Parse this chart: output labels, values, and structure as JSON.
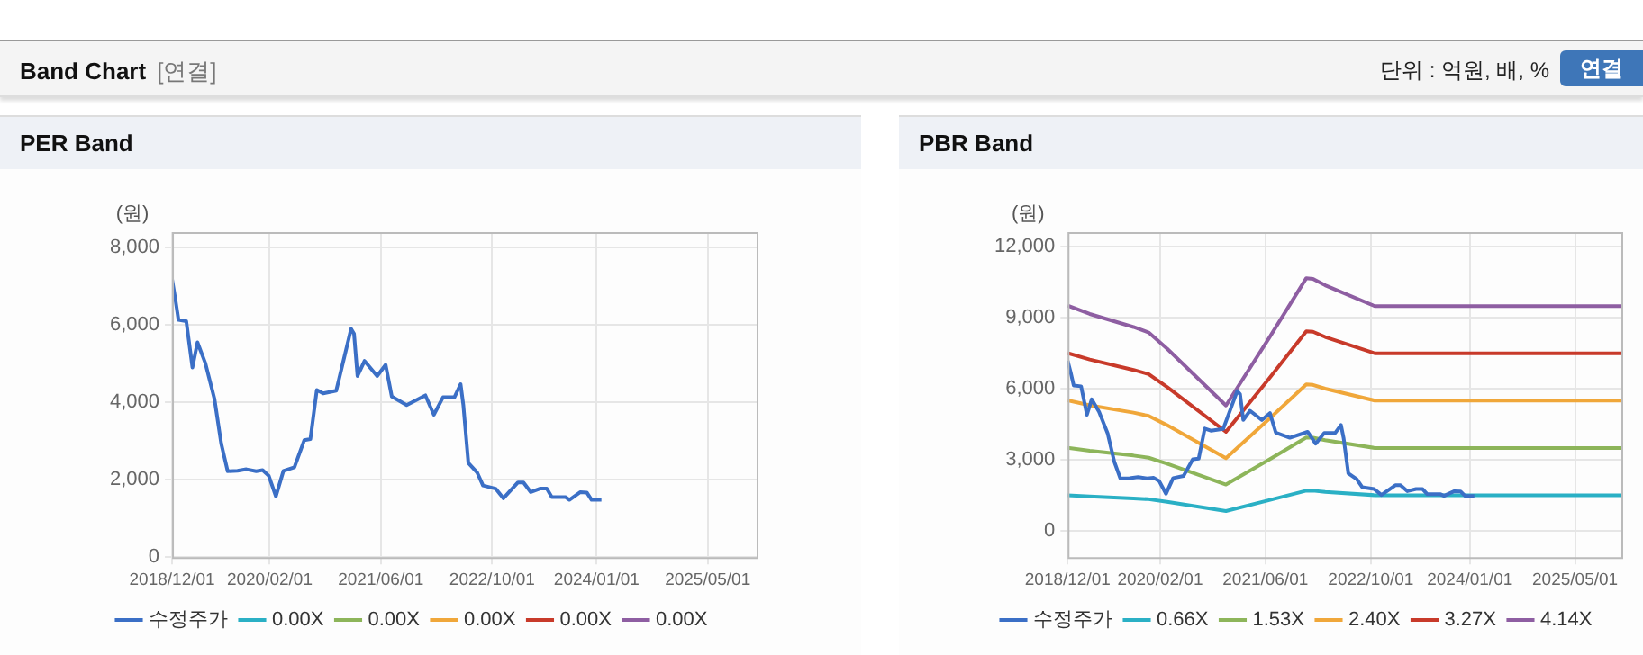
{
  "chart_data": [
    {
      "type": "other",
      "title": "Band Chart",
      "subtitle": "[연결]",
      "annotations": [
        "단위 : 억원, 배, %",
        "연결"
      ]
    },
    {
      "type": "line",
      "title": "PER Band",
      "ylabel": "(원)",
      "xlim": [
        "2018-12-01",
        "2025-12-01"
      ],
      "xticks": [
        {
          "value": "2018-12-01",
          "label": "2018/12/01"
        },
        {
          "value": "2020-02-01",
          "label": "2020/02/01"
        },
        {
          "value": "2021-06-01",
          "label": "2021/06/01"
        },
        {
          "value": "2022-10-01",
          "label": "2022/10/01"
        },
        {
          "value": "2024-01-01",
          "label": "2024/01/01"
        },
        {
          "value": "2025-05-01",
          "label": "2025/05/01"
        }
      ],
      "ylim": [
        0,
        8400
      ],
      "yticks": [
        0,
        {
          "value": 2000,
          "label": "2,000"
        },
        {
          "value": 4000,
          "label": "4,000"
        },
        {
          "value": 6000,
          "label": "6,000"
        },
        {
          "value": 8000,
          "label": "8,000"
        }
      ],
      "grid": true,
      "legend": "bottom",
      "series": [
        {
          "name": "수정주가",
          "color": "#3b6fc6",
          "x": [
            "2018-12-01",
            "2018-12-15",
            "2018-12-29",
            "2019-02-01",
            "2019-02-28",
            "2019-03-22",
            "2019-04-25",
            "2019-06-04",
            "2019-07-04",
            "2019-08-01",
            "2019-09-13",
            "2019-10-22",
            "2019-12-04",
            "2020-01-01",
            "2020-01-28",
            "2020-02-28",
            "2020-04-01",
            "2020-05-19",
            "2020-07-01",
            "2020-07-28",
            "2020-08-25",
            "2020-09-22",
            "2020-11-18",
            "2021-01-22",
            "2021-02-04",
            "2021-02-19",
            "2021-03-22",
            "2021-05-16",
            "2021-06-22",
            "2021-07-19",
            "2021-09-22",
            "2021-12-13",
            "2022-01-19",
            "2022-02-28",
            "2022-04-19",
            "2022-05-16",
            "2022-05-28",
            "2022-06-19",
            "2022-07-28",
            "2022-08-22",
            "2022-10-16",
            "2022-11-19",
            "2023-01-22",
            "2023-02-15",
            "2023-03-19",
            "2023-04-28",
            "2023-05-28",
            "2023-06-19",
            "2023-08-19",
            "2023-09-04",
            "2023-10-22",
            "2023-11-19",
            "2023-12-10",
            "2024-01-22"
          ],
          "values": [
            7180,
            6680,
            6130,
            6100,
            4900,
            5550,
            5020,
            4100,
            2930,
            2220,
            2230,
            2270,
            2220,
            2250,
            2100,
            1570,
            2230,
            2320,
            3020,
            3050,
            4320,
            4230,
            4300,
            5900,
            5770,
            4680,
            5070,
            4680,
            4970,
            4150,
            3930,
            4180,
            3680,
            4130,
            4130,
            4470,
            3930,
            2430,
            2180,
            1850,
            1770,
            1520,
            1930,
            1930,
            1680,
            1770,
            1770,
            1550,
            1550,
            1480,
            1680,
            1670,
            1480,
            1480
          ]
        },
        {
          "name": "0.00X",
          "color": "#2ab0c5"
        },
        {
          "name": "0.00X",
          "color": "#8db55a"
        },
        {
          "name": "0.00X",
          "color": "#f0a73a"
        },
        {
          "name": "0.00X",
          "color": "#c83a2a"
        },
        {
          "name": "0.00X",
          "color": "#8e5ea2"
        }
      ]
    },
    {
      "type": "line",
      "title": "PBR Band",
      "ylabel": "(원)",
      "xlim": [
        "2018-12-01",
        "2025-12-01"
      ],
      "xticks": [
        {
          "value": "2018-12-01",
          "label": "2018/12/01"
        },
        {
          "value": "2020-02-01",
          "label": "2020/02/01"
        },
        {
          "value": "2021-06-01",
          "label": "2021/06/01"
        },
        {
          "value": "2022-10-01",
          "label": "2022/10/01"
        },
        {
          "value": "2024-01-01",
          "label": "2024/01/01"
        },
        {
          "value": "2025-05-01",
          "label": "2025/05/01"
        }
      ],
      "ylim": [
        -1100,
        12600
      ],
      "yticks": [
        0,
        {
          "value": 3000,
          "label": "3,000"
        },
        {
          "value": 6000,
          "label": "6,000"
        },
        {
          "value": 9000,
          "label": "9,000"
        },
        {
          "value": 12000,
          "label": "12,000"
        }
      ],
      "grid": true,
      "legend": "bottom",
      "series": [
        {
          "name": "수정주가",
          "color": "#3b6fc6",
          "x": [
            "2018-12-01",
            "2018-12-15",
            "2018-12-29",
            "2019-02-01",
            "2019-02-28",
            "2019-03-22",
            "2019-04-25",
            "2019-06-04",
            "2019-07-04",
            "2019-08-01",
            "2019-09-13",
            "2019-10-22",
            "2019-12-04",
            "2020-01-01",
            "2020-01-28",
            "2020-02-28",
            "2020-04-01",
            "2020-05-19",
            "2020-07-01",
            "2020-07-28",
            "2020-08-25",
            "2020-09-22",
            "2020-11-18",
            "2021-01-22",
            "2021-02-04",
            "2021-02-19",
            "2021-03-22",
            "2021-05-16",
            "2021-06-22",
            "2021-07-19",
            "2021-09-22",
            "2021-12-13",
            "2022-01-19",
            "2022-02-28",
            "2022-04-19",
            "2022-05-16",
            "2022-05-28",
            "2022-06-19",
            "2022-07-28",
            "2022-08-22",
            "2022-10-16",
            "2022-11-19",
            "2023-01-22",
            "2023-02-15",
            "2023-03-19",
            "2023-04-28",
            "2023-05-28",
            "2023-06-19",
            "2023-08-19",
            "2023-09-04",
            "2023-10-22",
            "2023-11-19",
            "2023-12-10",
            "2024-01-22"
          ],
          "values": [
            7180,
            6680,
            6130,
            6100,
            4900,
            5550,
            5020,
            4100,
            2930,
            2220,
            2230,
            2270,
            2220,
            2250,
            2100,
            1570,
            2230,
            2320,
            3020,
            3050,
            4320,
            4230,
            4300,
            5900,
            5770,
            4680,
            5070,
            4680,
            4970,
            4150,
            3930,
            4180,
            3680,
            4130,
            4130,
            4470,
            3930,
            2430,
            2180,
            1850,
            1770,
            1520,
            1930,
            1930,
            1680,
            1770,
            1770,
            1550,
            1550,
            1480,
            1680,
            1670,
            1480,
            1480
          ]
        },
        {
          "name": "0.66X",
          "color": "#2ab0c5",
          "x": [
            "2018-12-01",
            "2019-03-13",
            "2019-10-01",
            "2019-12-10",
            "2020-03-04",
            "2020-12-01",
            "2021-06-19",
            "2021-12-07",
            "2022-01-07",
            "2022-03-04",
            "2022-10-19",
            "2025-12-01"
          ],
          "values": [
            1510,
            1460,
            1370,
            1340,
            1230,
            840,
            1300,
            1700,
            1700,
            1650,
            1510,
            1510
          ]
        },
        {
          "name": "1.53X",
          "color": "#8db55a",
          "x": [
            "2018-12-01",
            "2019-03-13",
            "2019-10-01",
            "2019-12-10",
            "2020-03-04",
            "2020-12-01",
            "2021-06-19",
            "2021-12-07",
            "2022-01-07",
            "2022-03-04",
            "2022-10-19",
            "2025-12-01"
          ],
          "values": [
            3510,
            3380,
            3180,
            3090,
            2840,
            1960,
            3010,
            3940,
            3930,
            3830,
            3500,
            3500
          ]
        },
        {
          "name": "2.40X",
          "color": "#f0a73a",
          "x": [
            "2018-12-01",
            "2019-03-13",
            "2019-10-01",
            "2019-12-10",
            "2020-03-04",
            "2020-12-01",
            "2021-06-19",
            "2021-12-07",
            "2022-01-07",
            "2022-03-04",
            "2022-10-19",
            "2025-12-01"
          ],
          "values": [
            5510,
            5300,
            4990,
            4850,
            4460,
            3070,
            4730,
            6180,
            6160,
            6000,
            5500,
            5500
          ]
        },
        {
          "name": "3.27X",
          "color": "#c83a2a",
          "x": [
            "2018-12-01",
            "2019-03-13",
            "2019-10-01",
            "2019-12-10",
            "2020-03-04",
            "2020-12-01",
            "2021-06-19",
            "2021-12-07",
            "2022-01-07",
            "2022-03-04",
            "2022-10-19",
            "2025-12-01"
          ],
          "values": [
            7500,
            7230,
            6790,
            6610,
            6070,
            4180,
            6440,
            8420,
            8400,
            8180,
            7490,
            7490
          ]
        },
        {
          "name": "4.14X",
          "color": "#8e5ea2",
          "x": [
            "2018-12-01",
            "2019-03-13",
            "2019-10-01",
            "2019-12-10",
            "2020-03-04",
            "2020-12-01",
            "2021-06-19",
            "2021-12-07",
            "2022-01-07",
            "2022-03-04",
            "2022-10-19",
            "2025-12-01"
          ],
          "values": [
            9500,
            9150,
            8600,
            8370,
            7690,
            5290,
            8150,
            10660,
            10630,
            10360,
            9480,
            9480
          ]
        }
      ]
    }
  ]
}
